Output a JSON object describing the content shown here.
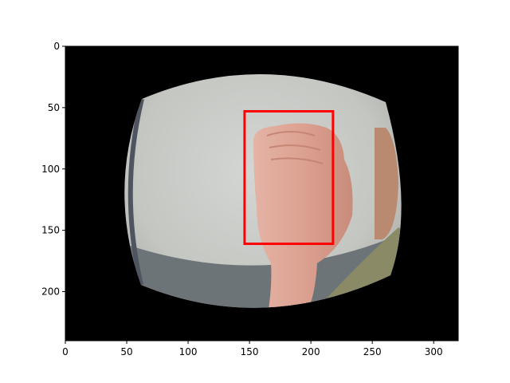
{
  "chart_data": {
    "type": "image",
    "title": "",
    "xlabel": "",
    "ylabel": "",
    "xlim": [
      0,
      320
    ],
    "ylim": [
      240,
      0
    ],
    "x_ticks": [
      0,
      50,
      100,
      150,
      200,
      250,
      300
    ],
    "y_ticks": [
      0,
      50,
      100,
      150,
      200
    ],
    "image": {
      "subject": "fisheye-distorted photo of a raised hand against a grey wall",
      "background_color": "#000000"
    },
    "bounding_boxes": [
      {
        "x_min": 146,
        "y_min": 53,
        "x_max": 218,
        "y_max": 161,
        "color": "#ff0000"
      }
    ]
  }
}
